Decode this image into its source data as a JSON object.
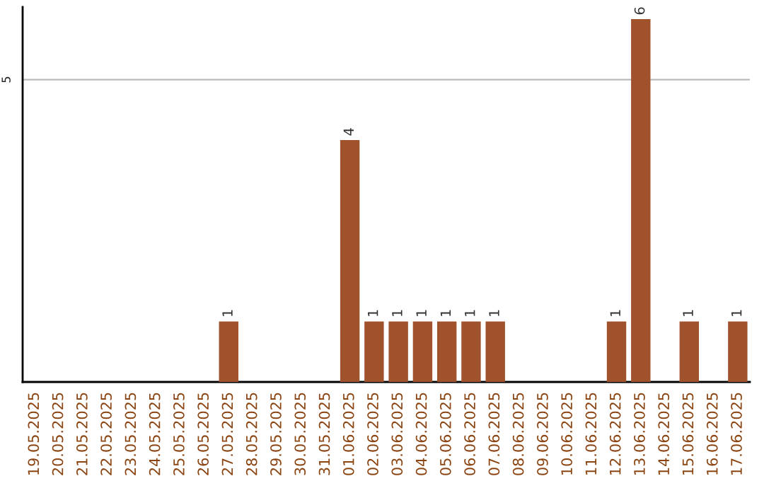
{
  "chart_data": {
    "type": "bar",
    "categories": [
      "19.05.2025",
      "20.05.2025",
      "21.05.2025",
      "22.05.2025",
      "23.05.2025",
      "24.05.2025",
      "25.05.2025",
      "26.05.2025",
      "27.05.2025",
      "28.05.2025",
      "29.05.2025",
      "30.05.2025",
      "31.05.2025",
      "01.06.2025",
      "02.06.2025",
      "03.06.2025",
      "04.06.2025",
      "05.06.2025",
      "06.06.2025",
      "07.06.2025",
      "08.06.2025",
      "09.06.2025",
      "10.06.2025",
      "11.06.2025",
      "12.06.2025",
      "13.06.2025",
      "14.06.2025",
      "15.06.2025",
      "16.06.2025",
      "17.06.2025"
    ],
    "values": [
      0,
      0,
      0,
      0,
      0,
      0,
      0,
      0,
      1,
      0,
      0,
      0,
      0,
      4,
      1,
      1,
      1,
      1,
      1,
      1,
      0,
      0,
      0,
      0,
      1,
      6,
      0,
      1,
      0,
      1
    ],
    "value_labels": [
      null,
      null,
      null,
      null,
      null,
      null,
      null,
      null,
      "1",
      null,
      null,
      null,
      null,
      "4",
      "1",
      "1",
      "1",
      "1",
      "1",
      "1",
      null,
      null,
      null,
      null,
      "1",
      "6",
      null,
      "1",
      null,
      "1"
    ],
    "color": "#a0522d",
    "ylim": [
      0,
      6.2
    ],
    "yticks": [
      5
    ],
    "grid": "y"
  }
}
